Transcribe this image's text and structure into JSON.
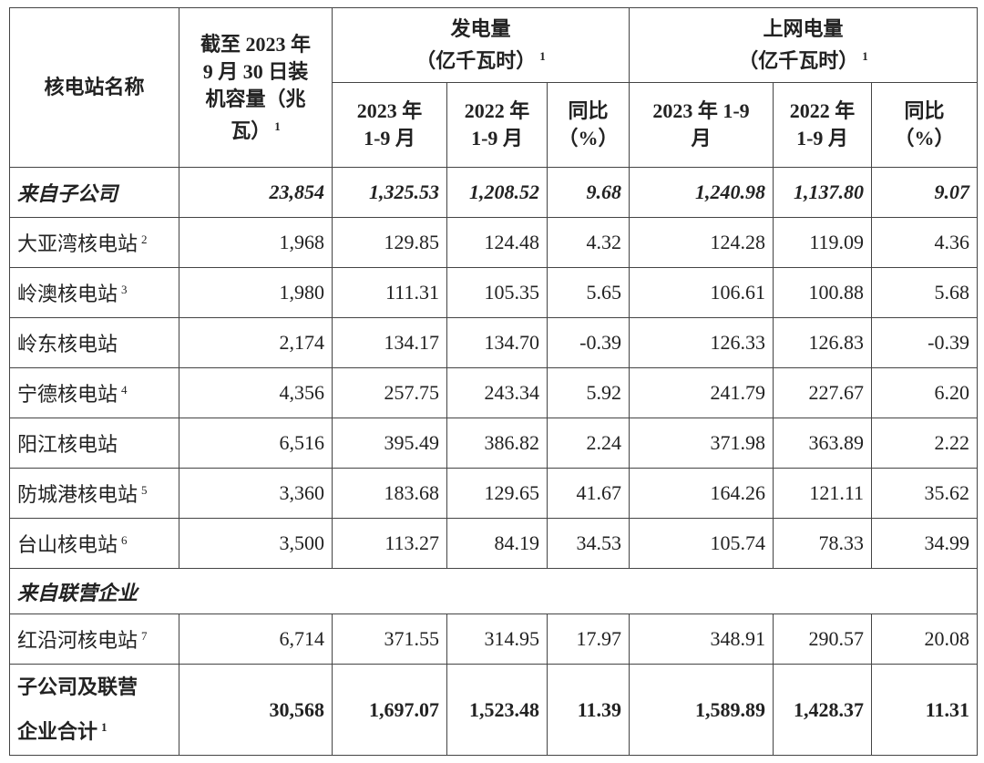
{
  "header": {
    "name": "核电站名称",
    "capacity": {
      "lines": [
        "截至 2023 年",
        "9 月 30 日装",
        "机容量（兆",
        "瓦）"
      ],
      "note": "1"
    },
    "generation": {
      "lines": [
        "发电量",
        "（亿千瓦时）"
      ],
      "note": "1"
    },
    "grid": {
      "lines": [
        "上网电量",
        "（亿千瓦时）"
      ],
      "note": "1"
    },
    "subcolumns": [
      {
        "lines": [
          "2023 年",
          "1-9 月"
        ]
      },
      {
        "lines": [
          "2022 年",
          "1-9 月"
        ]
      },
      {
        "lines": [
          "同比",
          "（%）"
        ]
      },
      {
        "lines": [
          "2023 年 1-9",
          "月"
        ]
      },
      {
        "lines": [
          "2022 年",
          "1-9 月"
        ]
      },
      {
        "lines": [
          "同比",
          "（%）"
        ]
      }
    ]
  },
  "sections": [
    {
      "label": "来自子公司",
      "totals": [
        "23,854",
        "1,325.53",
        "1,208.52",
        "9.68",
        "1,240.98",
        "1,137.80",
        "9.07"
      ],
      "rows": [
        {
          "name": "大亚湾核电站",
          "note": "2",
          "cells": [
            "1,968",
            "129.85",
            "124.48",
            "4.32",
            "124.28",
            "119.09",
            "4.36"
          ]
        },
        {
          "name": "岭澳核电站",
          "note": "3",
          "cells": [
            "1,980",
            "111.31",
            "105.35",
            "5.65",
            "106.61",
            "100.88",
            "5.68"
          ]
        },
        {
          "name": "岭东核电站",
          "cells": [
            "2,174",
            "134.17",
            "134.70",
            "-0.39",
            "126.33",
            "126.83",
            "-0.39"
          ]
        },
        {
          "name": "宁德核电站",
          "note": "4",
          "cells": [
            "4,356",
            "257.75",
            "243.34",
            "5.92",
            "241.79",
            "227.67",
            "6.20"
          ]
        },
        {
          "name": "阳江核电站",
          "cells": [
            "6,516",
            "395.49",
            "386.82",
            "2.24",
            "371.98",
            "363.89",
            "2.22"
          ]
        },
        {
          "name": "防城港核电站",
          "note": "5",
          "cells": [
            "3,360",
            "183.68",
            "129.65",
            "41.67",
            "164.26",
            "121.11",
            "35.62"
          ]
        },
        {
          "name": "台山核电站",
          "note": "6",
          "cells": [
            "3,500",
            "113.27",
            "84.19",
            "34.53",
            "105.74",
            "78.33",
            "34.99"
          ]
        }
      ]
    },
    {
      "label": "来自联营企业",
      "rows": [
        {
          "name": "红沿河核电站",
          "note": "7",
          "cells": [
            "6,714",
            "371.55",
            "314.95",
            "17.97",
            "348.91",
            "290.57",
            "20.08"
          ]
        }
      ]
    }
  ],
  "total": {
    "lines": [
      "子公司及联营",
      "企业合计"
    ],
    "note": "1",
    "cells": [
      "30,568",
      "1,697.07",
      "1,523.48",
      "11.39",
      "1,589.89",
      "1,428.37",
      "11.31"
    ]
  }
}
